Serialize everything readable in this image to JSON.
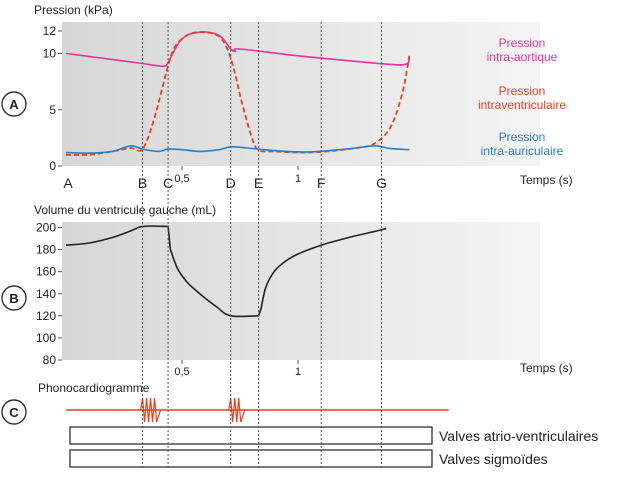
{
  "colors": {
    "aortic": "#e8349a",
    "ventricular": "#e8401c",
    "atrial": "#2a7fc0",
    "volume": "#222222",
    "phono": "#e8401c",
    "panel_bg_dark": "#d9d9d9",
    "panel_bg_light": "#f0f0f0",
    "marker_line": "#555555"
  },
  "panels": {
    "a_label": "A",
    "b_label": "B",
    "c_label": "C"
  },
  "events": [
    {
      "label": "A",
      "t": 0.0
    },
    {
      "label": "B",
      "t": 0.33
    },
    {
      "label": "C",
      "t": 0.44
    },
    {
      "label": "D",
      "t": 0.71
    },
    {
      "label": "E",
      "t": 0.83
    },
    {
      "label": "F",
      "t": 1.1
    },
    {
      "label": "G",
      "t": 1.36
    }
  ],
  "phonocardiogram": {
    "label": "Phonocardiogramme",
    "sounds": [
      {
        "t": 0.33,
        "oscillations": 4
      },
      {
        "t": 0.71,
        "oscillations": 3
      }
    ]
  },
  "valve_bars": [
    {
      "label": "Valves atrio-ventriculaires"
    },
    {
      "label": "Valves sigmoïdes"
    }
  ],
  "chart_data": [
    {
      "type": "line",
      "ylabel": "Pression (kPa)",
      "xlabel": "Temps (s)",
      "ylim": [
        0,
        12.8
      ],
      "yticks": [
        "0",
        "5",
        "10",
        "12"
      ],
      "xticks": [
        "0,5",
        "1"
      ],
      "grid": false,
      "series": [
        {
          "name": "Pression intra-aortique",
          "style": "solid",
          "x": [
            0,
            0.15,
            0.3,
            0.4,
            0.43,
            0.44,
            0.5,
            0.58,
            0.66,
            0.71,
            0.73,
            0.75,
            1.0,
            1.25,
            1.45,
            1.48
          ],
          "y": [
            10.0,
            9.6,
            9.2,
            8.9,
            8.9,
            9.2,
            11.3,
            11.9,
            11.6,
            10.4,
            10.2,
            10.4,
            9.8,
            9.3,
            9.0,
            9.6
          ]
        },
        {
          "name": "Pression intraventriculaire",
          "style": "dashed",
          "x": [
            0,
            0.1,
            0.2,
            0.28,
            0.33,
            0.38,
            0.44,
            0.47,
            0.52,
            0.58,
            0.66,
            0.71,
            0.76,
            0.8,
            0.83,
            0.9,
            1.0,
            1.1,
            1.25,
            1.33,
            1.4,
            1.45,
            1.48
          ],
          "y": [
            1.0,
            1.0,
            1.3,
            1.6,
            1.5,
            4.2,
            8.9,
            10.6,
            11.6,
            11.9,
            11.5,
            9.6,
            5.5,
            2.6,
            1.4,
            1.3,
            1.2,
            1.25,
            1.6,
            2.0,
            3.5,
            6.5,
            9.8
          ]
        },
        {
          "name": "Pression intra-auriculaire",
          "style": "solid",
          "x": [
            0,
            0.1,
            0.2,
            0.28,
            0.33,
            0.4,
            0.44,
            0.5,
            0.58,
            0.66,
            0.71,
            0.78,
            0.85,
            0.95,
            1.05,
            1.15,
            1.25,
            1.33,
            1.4,
            1.48
          ],
          "y": [
            1.2,
            1.15,
            1.3,
            1.8,
            1.5,
            1.3,
            1.5,
            1.45,
            1.3,
            1.45,
            1.7,
            1.6,
            1.45,
            1.3,
            1.25,
            1.4,
            1.6,
            1.8,
            1.55,
            1.45
          ]
        }
      ]
    },
    {
      "type": "line",
      "ylabel": "Volume du ventricule gauche (mL)",
      "xlabel": "Temps (s)",
      "ylim": [
        80,
        205
      ],
      "yticks": [
        "80",
        "100",
        "120",
        "140",
        "160",
        "180",
        "200"
      ],
      "xticks": [
        "0,5",
        "1"
      ],
      "grid": false,
      "series": [
        {
          "x": [
            0,
            0.1,
            0.2,
            0.28,
            0.33,
            0.44,
            0.45,
            0.48,
            0.52,
            0.56,
            0.6,
            0.65,
            0.71,
            0.83,
            0.84,
            0.86,
            0.89,
            0.93,
            1.0,
            1.1,
            1.2,
            1.3,
            1.38
          ],
          "y": [
            184,
            186,
            191,
            197,
            201,
            201,
            180,
            163,
            151,
            143,
            136,
            128,
            120,
            120,
            126,
            145,
            158,
            167,
            176,
            184,
            190,
            195,
            199
          ]
        }
      ]
    }
  ]
}
